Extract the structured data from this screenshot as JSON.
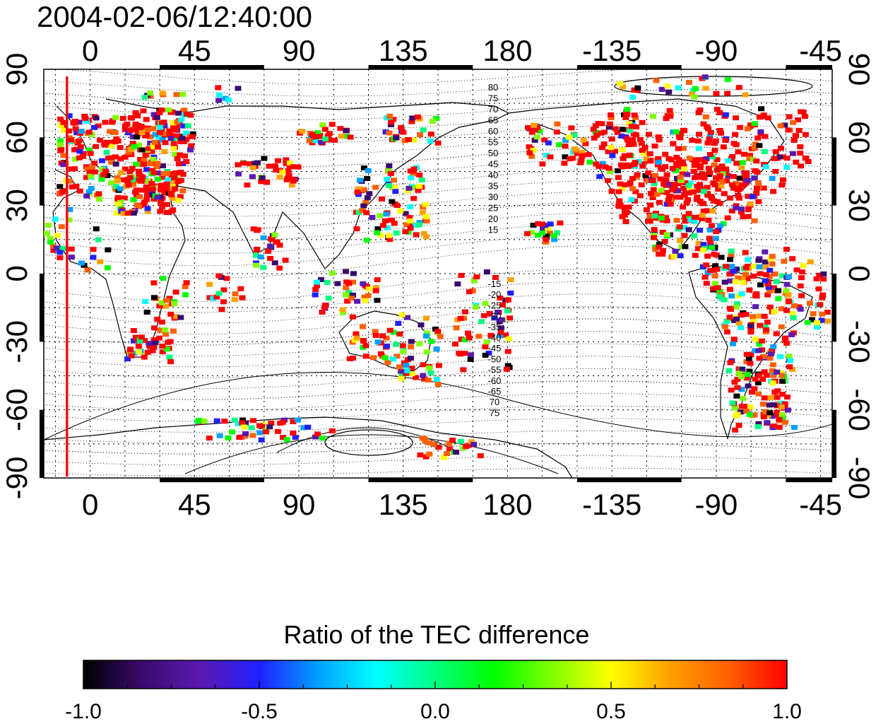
{
  "title": "2004-02-06/12:40:00",
  "map": {
    "lon_ticks": [
      "0",
      "45",
      "90",
      "135",
      "180",
      "-135",
      "-90",
      "-45"
    ],
    "lon_tick_values": [
      0,
      45,
      90,
      135,
      180,
      225,
      270,
      315
    ],
    "lat_ticks": [
      "90",
      "60",
      "30",
      "0",
      "-30",
      "-60",
      "-90"
    ],
    "lat_tick_values": [
      90,
      60,
      30,
      0,
      -30,
      -60,
      -90
    ],
    "lon_range": [
      -20,
      320
    ],
    "lat_range": [
      -90,
      90
    ],
    "grid": "dotted, every 15 degrees",
    "terminator_lon": -10,
    "terminator_color": "#e8120f",
    "contour_labels_north": [
      "80",
      "75",
      "70",
      "65",
      "60",
      "55",
      "50",
      "45",
      "40",
      "35",
      "30",
      "25",
      "20",
      "15"
    ],
    "contour_labels_south": [
      "-15",
      "-20",
      "-25",
      "-30",
      "-35",
      "-40",
      "-45",
      "-50",
      "-55",
      "-60",
      "-65",
      "70",
      "75"
    ]
  },
  "colorbar": {
    "title": "Ratio of the TEC difference",
    "tick_labels": [
      "-1.0",
      "-0.5",
      "0.0",
      "0.5",
      "1.0"
    ],
    "tick_values": [
      -1.0,
      -0.5,
      0.0,
      0.5,
      1.0
    ],
    "range": [
      -1.0,
      1.0
    ],
    "colors": [
      "#000000",
      "#3a0a6e",
      "#5a1ab0",
      "#2020ff",
      "#00a0ff",
      "#00ffff",
      "#00ff80",
      "#00ff00",
      "#80ff00",
      "#ffff00",
      "#ffa000",
      "#ff6000",
      "#ff0000"
    ]
  }
}
